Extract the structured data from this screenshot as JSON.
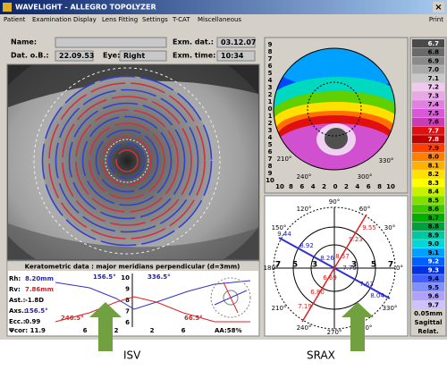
{
  "window": {
    "title": "WAVELIGHT - ALLEGRO TOPOLYZER",
    "close": "×"
  },
  "menu": [
    "Patient",
    "Examination",
    "Display",
    "Lens Fitting",
    "Settings",
    "T-CAT",
    "Miscellaneous"
  ],
  "menu_right": "Print",
  "form": {
    "name_label": "Name:",
    "dob_label": "Dat. o.B.:",
    "dob": "22.09.53",
    "eye_label": "Eye:",
    "eye": "Right",
    "exam_date_label": "Exm. dat.:",
    "exam_date": "03.12.07",
    "exam_time_label": "Exm. time:",
    "exam_time": "10:34"
  },
  "keratometry": {
    "title": "Keratometric data : major meridians perpendicular (d=3mm)",
    "rows": [
      [
        "Rh:",
        "8.20mm"
      ],
      [
        "Rv:",
        "7.86mm"
      ],
      [
        "Ast.:",
        "-1.8D"
      ],
      [
        "Axs.:",
        "156.5°"
      ],
      [
        "Ecc.:",
        "0.99"
      ]
    ],
    "psi": "Ψcor: 11.9",
    "aa": "AA:58%",
    "angles": [
      "156.5°",
      "336.5°",
      "246.5°",
      "66.5°"
    ],
    "y_labels": [
      "10",
      "9",
      "8",
      "7",
      "6"
    ],
    "x_labels": [
      "6",
      "2",
      "2",
      "6"
    ]
  },
  "topography": {
    "x_labels": [
      "10",
      "8",
      "6",
      "4",
      "2",
      "0",
      "2",
      "4",
      "6",
      "8",
      "10"
    ],
    "y_labels": [
      "9",
      "8",
      "7",
      "6",
      "5",
      "4",
      "3",
      "2",
      "1",
      "0",
      "1",
      "2",
      "3",
      "4",
      "5",
      "6",
      "7",
      "8",
      "9",
      "10"
    ],
    "angles": [
      "210°",
      "240°",
      "300°",
      "330°"
    ]
  },
  "srax": {
    "angles": [
      "90°",
      "120°",
      "60°",
      "150°",
      "30°",
      "180°",
      "0°",
      "210°",
      "330°",
      "240°",
      "300°",
      "270°"
    ],
    "rings": [
      "7",
      "5",
      "3",
      "3",
      "5",
      "7"
    ],
    "values": [
      {
        "text": "9.44",
        "color": "#2020c0"
      },
      {
        "text": "8.92",
        "color": "#2020c0"
      },
      {
        "text": "9.23",
        "color": "#d02020"
      },
      {
        "text": "9.55",
        "color": "#d02020"
      },
      {
        "text": "8.26",
        "color": "#2020c0"
      },
      {
        "text": "8.57",
        "color": "#d02020"
      },
      {
        "text": "7.79",
        "color": "#2020c0"
      },
      {
        "text": "7.63",
        "color": "#2020c0"
      },
      {
        "text": "8.04",
        "color": "#2020c0"
      },
      {
        "text": "6.69",
        "color": "#d02020"
      },
      {
        "text": "6.80",
        "color": "#d02020"
      },
      {
        "text": "7.19",
        "color": "#d02020"
      }
    ]
  },
  "scale": {
    "entries": [
      {
        "label": "6.7",
        "color": "#4a4a4a"
      },
      {
        "label": "6.8",
        "color": "#6a6a6a"
      },
      {
        "label": "6.9",
        "color": "#8a8a8a"
      },
      {
        "label": "7.0",
        "color": "#aaaaaa"
      },
      {
        "label": "7.1",
        "color": "#c8c8c8"
      },
      {
        "label": "7.2",
        "color": "#f0c8f0"
      },
      {
        "label": "7.3",
        "color": "#e8a8e8"
      },
      {
        "label": "7.4",
        "color": "#e080e0"
      },
      {
        "label": "7.5",
        "color": "#d858d8"
      },
      {
        "label": "7.6",
        "color": "#c83cb4"
      },
      {
        "label": "7.7",
        "color": "#e01010"
      },
      {
        "label": "7.8",
        "color": "#c00000"
      },
      {
        "label": "7.9",
        "color": "#ff4000"
      },
      {
        "label": "8.0",
        "color": "#ff8000"
      },
      {
        "label": "8.1",
        "color": "#ffb000"
      },
      {
        "label": "8.2",
        "color": "#ffe000"
      },
      {
        "label": "8.3",
        "color": "#ffff00"
      },
      {
        "label": "8.4",
        "color": "#c8f000"
      },
      {
        "label": "8.5",
        "color": "#80e000"
      },
      {
        "label": "8.6",
        "color": "#40c800"
      },
      {
        "label": "8.7",
        "color": "#00b000"
      },
      {
        "label": "8.8",
        "color": "#00a040"
      },
      {
        "label": "8.9",
        "color": "#00c8a0"
      },
      {
        "label": "9.0",
        "color": "#00d8d8"
      },
      {
        "label": "9.1",
        "color": "#00a0ff"
      },
      {
        "label": "9.2",
        "color": "#0060ff"
      },
      {
        "label": "9.3",
        "color": "#0030e0"
      },
      {
        "label": "9.4",
        "color": "#4060ff"
      },
      {
        "label": "9.5",
        "color": "#8090ff"
      },
      {
        "label": "9.6",
        "color": "#b0a0ff"
      },
      {
        "label": "9.7",
        "color": "#d0c0ff"
      }
    ],
    "step": "0.05mm",
    "mode": "Sagittal",
    "ref": "Relat."
  },
  "annotations": [
    "ISV",
    "SRAX"
  ]
}
